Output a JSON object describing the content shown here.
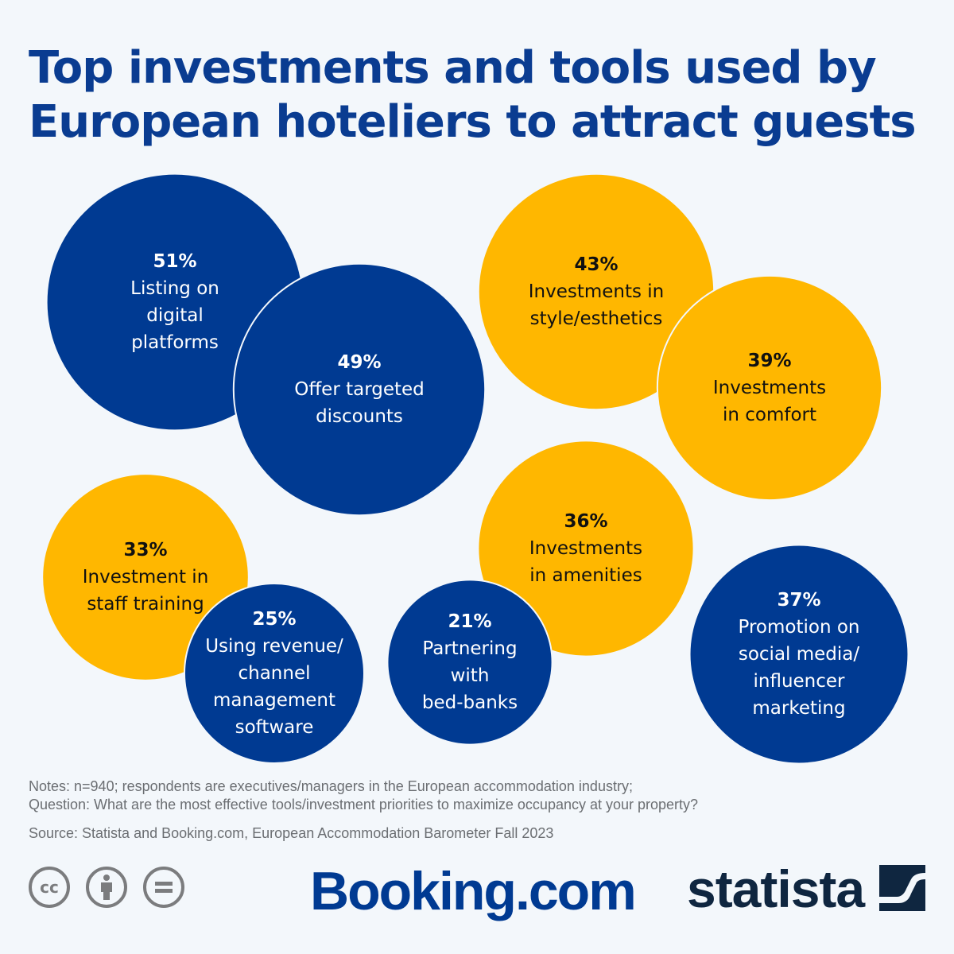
{
  "title": "Top investments and tools used by European hoteliers to attract guests",
  "colors": {
    "blue": "#003a92",
    "yellow": "#ffb700",
    "title": "#0a3c91",
    "background": "#f3f7fb"
  },
  "chart_data": {
    "type": "bubble",
    "unit": "%",
    "items": [
      {
        "value": 51,
        "pct": "51%",
        "lines": [
          "Listing on",
          "digital",
          "platforms"
        ],
        "color": "blue"
      },
      {
        "value": 49,
        "pct": "49%",
        "lines": [
          "Offer targeted",
          "discounts"
        ],
        "color": "blue"
      },
      {
        "value": 43,
        "pct": "43%",
        "lines": [
          "Investments in",
          "style/esthetics"
        ],
        "color": "yellow"
      },
      {
        "value": 39,
        "pct": "39%",
        "lines": [
          "Investments",
          "in comfort"
        ],
        "color": "yellow"
      },
      {
        "value": 33,
        "pct": "33%",
        "lines": [
          "Investment in",
          "staff training"
        ],
        "color": "yellow"
      },
      {
        "value": 25,
        "pct": "25%",
        "lines": [
          "Using revenue/",
          "channel",
          "management",
          "software"
        ],
        "color": "blue"
      },
      {
        "value": 36,
        "pct": "36%",
        "lines": [
          "Investments",
          "in amenities"
        ],
        "color": "yellow"
      },
      {
        "value": 21,
        "pct": "21%",
        "lines": [
          "Partnering",
          "with",
          "bed-banks"
        ],
        "color": "blue"
      },
      {
        "value": 37,
        "pct": "37%",
        "lines": [
          "Promotion on",
          "social media/",
          "influencer",
          "marketing"
        ],
        "color": "blue"
      }
    ]
  },
  "footer": {
    "notes_line1": "Notes: n=940; respondents are executives/managers in the European accommodation industry;",
    "notes_line2": "Question: What are the most effective tools/investment priorities to maximize occupancy at your property?",
    "source": "Source: Statista and Booking.com, European Accommodation Barometer Fall 2023",
    "license_icons": [
      "cc-icon",
      "attribution-icon",
      "no-derivatives-icon"
    ],
    "logo_booking": "Booking.com",
    "logo_statista": "statista"
  }
}
